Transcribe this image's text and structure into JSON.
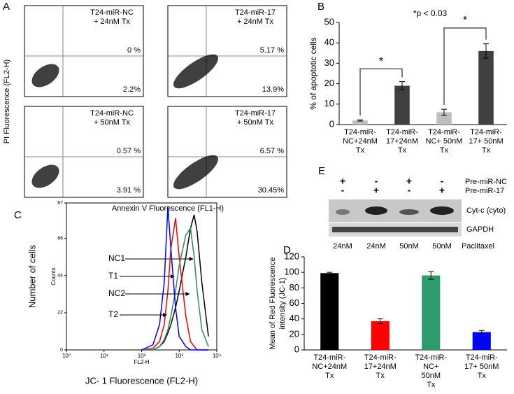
{
  "panel_a": {
    "label": "A",
    "y_label": "PI Fluorescence (FL2-H)",
    "x_label": "Annexin V Fluorescence (FL1-H)",
    "plots": [
      {
        "title": [
          "T24-miR-NC",
          "+ 24nM Tx"
        ],
        "upper_right": "0 %",
        "lower_right": "2.2%"
      },
      {
        "title": [
          "T24-miR-17",
          "+ 24nM Tx"
        ],
        "upper_right": "5.17 %",
        "lower_right": "13.9%"
      },
      {
        "title": [
          "T24-miR-NC",
          "+ 50nM Tx"
        ],
        "upper_right": "0.57 %",
        "lower_right": "3.91 %"
      },
      {
        "title": [
          "T24-miR-17",
          "+ 50nM Tx"
        ],
        "upper_right": "6.57 %",
        "lower_right": "30.45%"
      }
    ]
  },
  "panel_e": {
    "label": "E",
    "rows": [
      {
        "name": "Pre-miR-NC",
        "marks": [
          "+",
          "-",
          "+",
          "-"
        ]
      },
      {
        "name": "Pre-miR-17",
        "marks": [
          "-",
          "+",
          "-",
          "+"
        ]
      }
    ],
    "bands": [
      "Cyt-c (cyto)",
      "GAPDH"
    ],
    "doses": [
      "24nM",
      "24nM",
      "50nM",
      "50nM"
    ],
    "drug": "Paclitaxel"
  },
  "chart_data": [
    {
      "type": "bar",
      "label": "B",
      "y_label": "% of apoptotic cells",
      "categories": [
        [
          "T24-miR-",
          "NC+24nM",
          "Tx"
        ],
        [
          "T24-miR-",
          "17+24nM",
          "Tx"
        ],
        [
          "T24-miR-",
          "NC+ 50nM",
          "Tx"
        ],
        [
          "T24-miR-",
          "17+ 50nM",
          "Tx"
        ]
      ],
      "values": [
        2,
        19,
        6,
        36
      ],
      "errors": [
        0.3,
        2,
        1.5,
        3.5
      ],
      "colors": [
        "#bfbfbf",
        "#404040",
        "#bfbfbf",
        "#404040"
      ],
      "ylim": [
        0,
        50
      ],
      "yticks": [
        0,
        10,
        20,
        30,
        40,
        50
      ],
      "annotations": [
        "*p < 0.03",
        "*",
        "*"
      ]
    },
    {
      "type": "line",
      "label": "C",
      "y_label": "Number of cells",
      "x_label": "JC- 1 Fluorescence (FL2-H)",
      "inner_x_label": "FL2-H",
      "inner_y_label": "Counts",
      "log_x": true,
      "x": [
        100,
        200,
        300,
        400,
        500,
        600,
        800,
        1000,
        1500,
        2000,
        2500,
        3000,
        4000,
        6000
      ],
      "series": [
        {
          "name": "NC1",
          "color": "#000000",
          "values": [
            0,
            0,
            2,
            5,
            10,
            15,
            25,
            35,
            55,
            72,
            80,
            70,
            40,
            8
          ]
        },
        {
          "name": "T1",
          "color": "#ff0000",
          "values": [
            0,
            1,
            5,
            15,
            35,
            60,
            78,
            55,
            20,
            5,
            2,
            0,
            0,
            0
          ]
        },
        {
          "name": "NC2",
          "color": "#2e8b60",
          "values": [
            0,
            0,
            2,
            6,
            12,
            20,
            35,
            50,
            68,
            72,
            55,
            35,
            12,
            2
          ]
        },
        {
          "name": "T2",
          "color": "#0000ff",
          "values": [
            0,
            3,
            15,
            40,
            85,
            60,
            25,
            8,
            2,
            0,
            0,
            0,
            0,
            0
          ]
        }
      ],
      "xlim": [
        1,
        10000
      ],
      "xticks": [
        {
          "value": 1,
          "label": "10⁰"
        },
        {
          "value": 10,
          "label": "10¹"
        },
        {
          "value": 100,
          "label": "10²"
        },
        {
          "value": 1000,
          "label": "10³"
        },
        {
          "value": 10000,
          "label": "10⁴"
        }
      ],
      "ylim": [
        0,
        87
      ],
      "yticks": [
        0,
        22,
        44,
        66,
        87
      ]
    },
    {
      "type": "bar",
      "label": "D",
      "y_label": [
        "Mean of Red Fluorescence",
        "intensity (JC-1)"
      ],
      "categories": [
        [
          "T24-miR-",
          "NC+24nM",
          "Tx"
        ],
        [
          "T24-miR-",
          "17+24nM",
          "Tx"
        ],
        [
          "T24-miR-",
          "NC+",
          "50nM",
          "Tx"
        ],
        [
          "T24-miR-",
          "17+ 50nM",
          "Tx"
        ]
      ],
      "values": [
        99,
        37,
        96,
        23
      ],
      "errors": [
        1,
        3,
        5,
        2
      ],
      "colors": [
        "#000000",
        "#ff0000",
        "#2e9b6e",
        "#0000ff"
      ],
      "ylim": [
        0,
        120
      ],
      "yticks": [
        0,
        20,
        40,
        60,
        80,
        100,
        120
      ]
    }
  ]
}
